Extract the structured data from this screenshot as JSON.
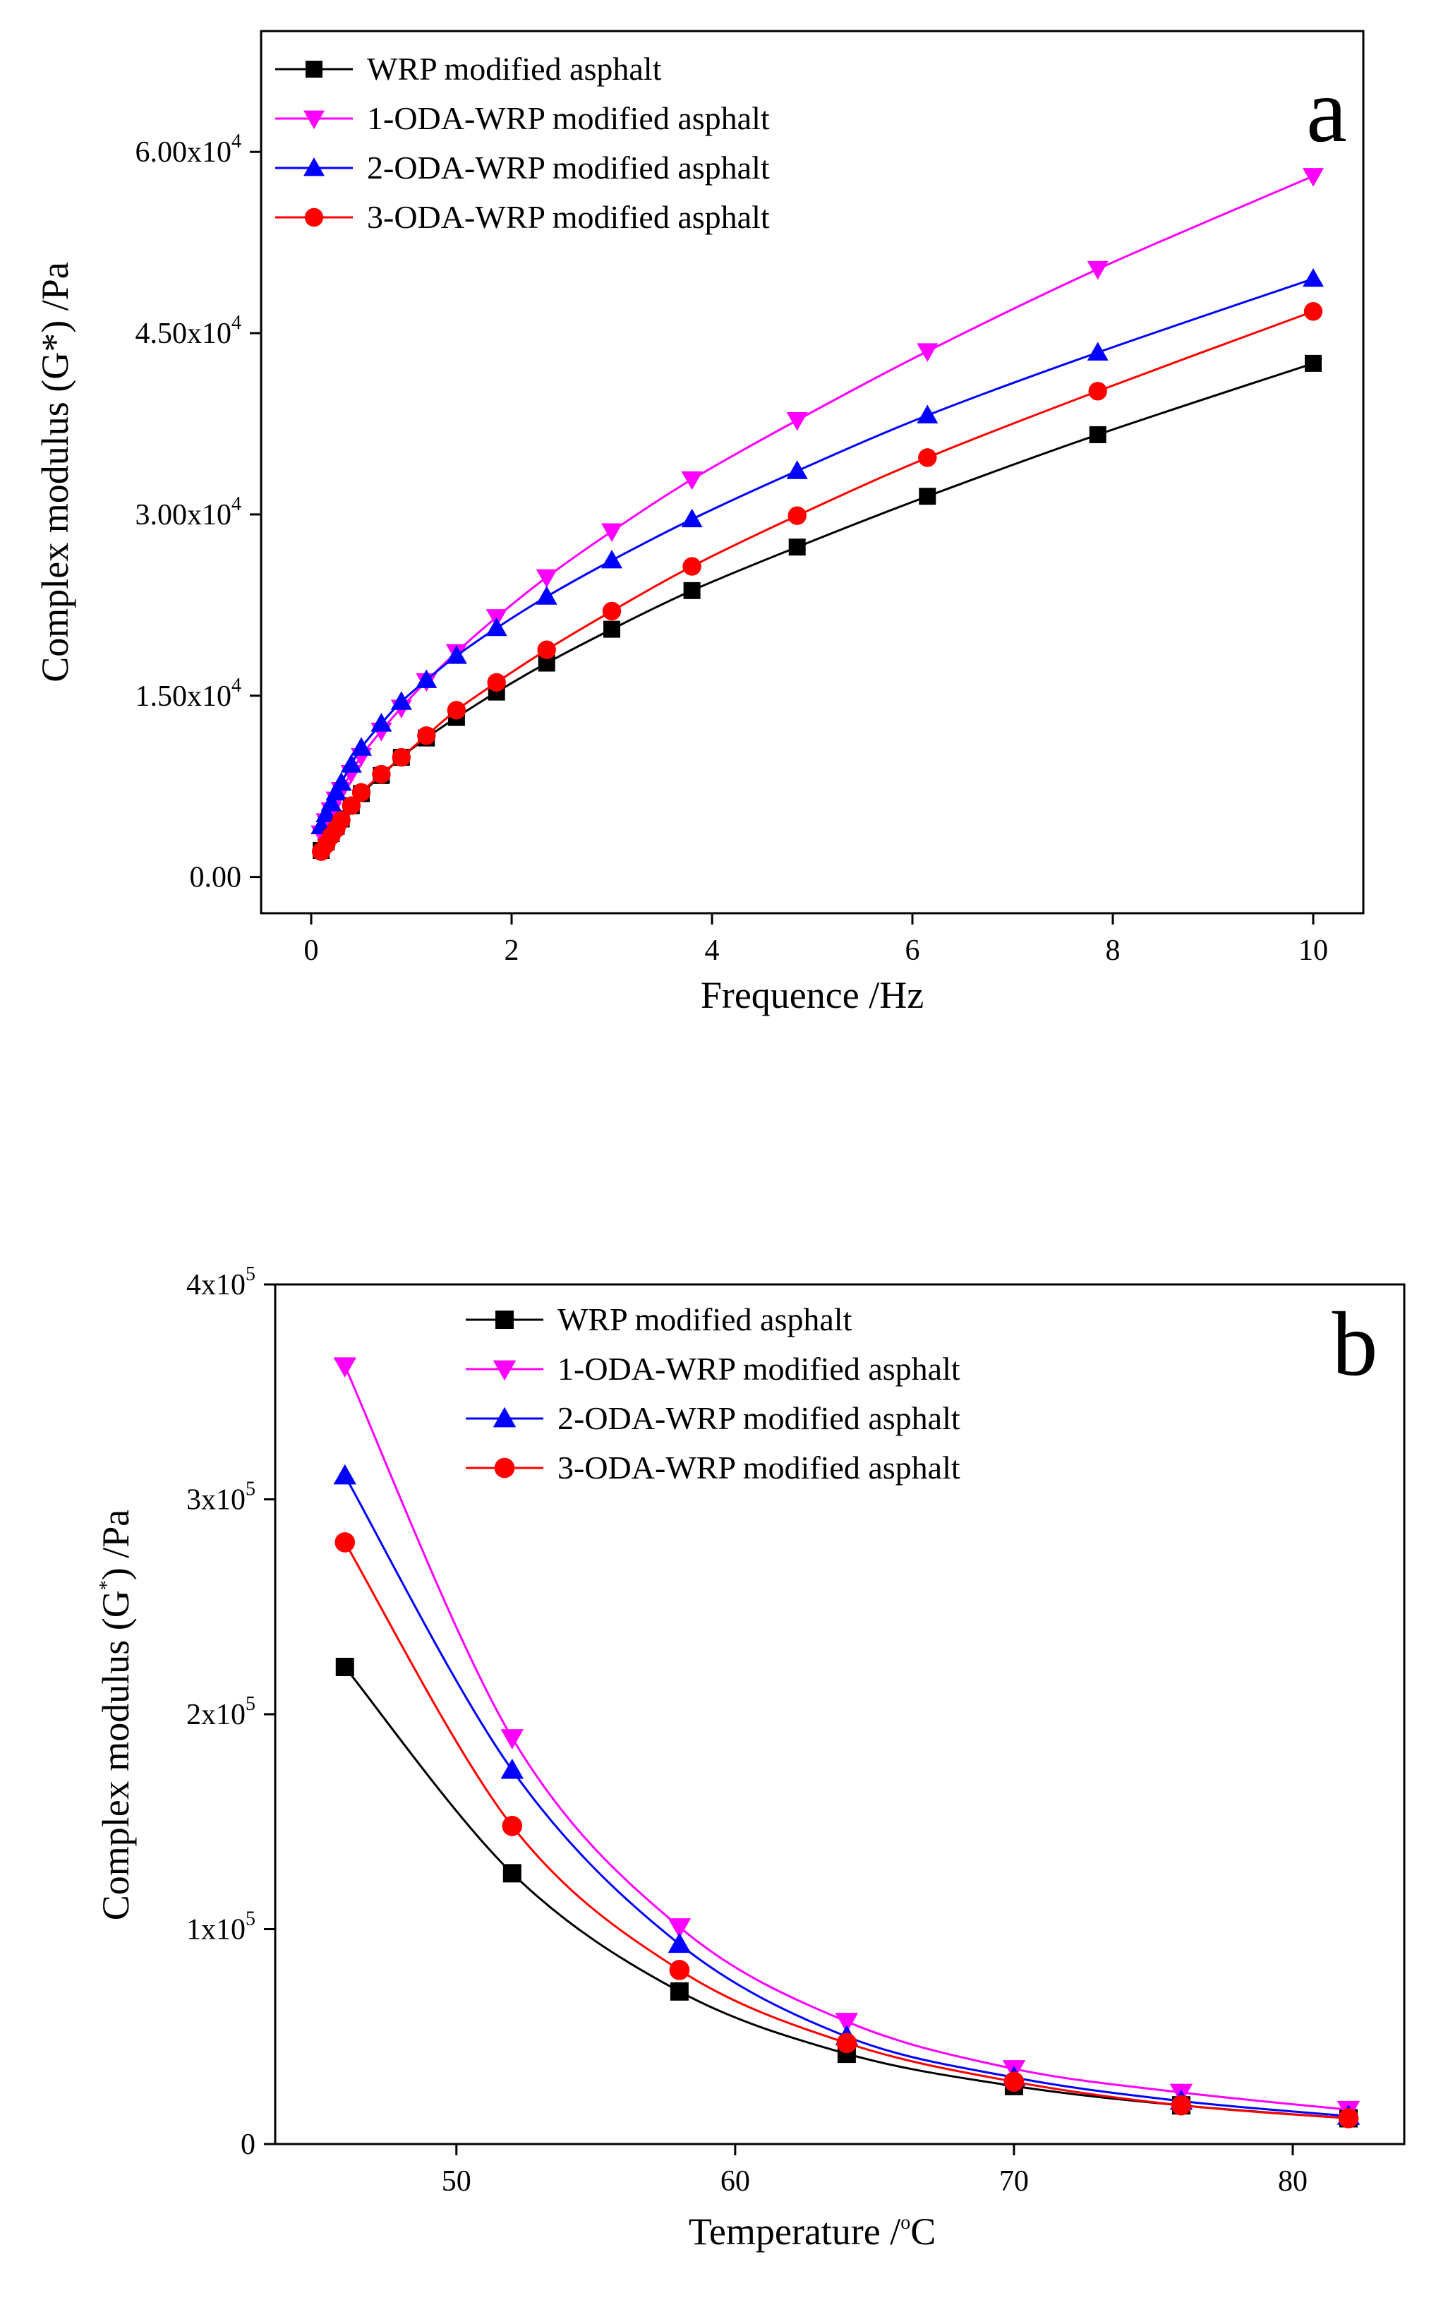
{
  "chart_data": [
    {
      "type": "line",
      "panel_label": "a",
      "xlabel": "Frequence /Hz",
      "ylabel": "Complex modulus (G*) /Pa",
      "xlim": [
        -0.5,
        10.5
      ],
      "ylim": [
        -3000,
        70000
      ],
      "x_ticks": [
        {
          "value": 0,
          "label": "0"
        },
        {
          "value": 2,
          "label": "2"
        },
        {
          "value": 4,
          "label": "4"
        },
        {
          "value": 6,
          "label": "6"
        },
        {
          "value": 8,
          "label": "8"
        },
        {
          "value": 10,
          "label": "10"
        }
      ],
      "y_ticks": [
        {
          "value": 0,
          "label": "0.00",
          "exp": ""
        },
        {
          "value": 15000,
          "label": "1.50x10",
          "exp": "4"
        },
        {
          "value": 30000,
          "label": "3.00x10",
          "exp": "4"
        },
        {
          "value": 45000,
          "label": "4.50x10",
          "exp": "4"
        },
        {
          "value": 60000,
          "label": "6.00x10",
          "exp": "4"
        }
      ],
      "legend_position": "top-left",
      "x": [
        0.1,
        0.126,
        0.158,
        0.2,
        0.251,
        0.316,
        0.398,
        0.501,
        0.631,
        0.794,
        1.0,
        1.26,
        1.58,
        2.0,
        2.51,
        3.16,
        3.98,
        5.01,
        6.31,
        7.94,
        10.0
      ],
      "series": [
        {
          "name": "WRP modified asphalt",
          "color": "#000000",
          "marker": "square",
          "x": [
            0.1,
            0.15,
            0.2,
            0.25,
            0.3,
            0.4,
            0.5,
            0.7,
            0.9,
            1.15,
            1.45,
            1.85,
            2.35,
            3.0,
            3.8,
            4.85,
            6.15,
            7.85,
            10.0
          ],
          "values": [
            2200,
            2900,
            3600,
            4200,
            4800,
            5900,
            6900,
            8400,
            9900,
            11500,
            13200,
            15300,
            17700,
            20500,
            23700,
            27300,
            31500,
            36600,
            42500
          ]
        },
        {
          "name": "1-ODA-WRP modified asphalt",
          "color": "#ff00ff",
          "marker": "triangle-down",
          "x": [
            0.1,
            0.15,
            0.2,
            0.25,
            0.3,
            0.4,
            0.5,
            0.7,
            0.9,
            1.15,
            1.45,
            1.85,
            2.35,
            3.0,
            3.8,
            4.85,
            6.15,
            7.85,
            10.0
          ],
          "values": [
            3600,
            4600,
            5500,
            6400,
            7200,
            8600,
            10000,
            12100,
            14000,
            16200,
            18600,
            21500,
            24800,
            28600,
            32900,
            37800,
            43500,
            50300,
            58000
          ]
        },
        {
          "name": "2-ODA-WRP modified asphalt",
          "color": "#0000ff",
          "marker": "triangle-up",
          "x": [
            0.1,
            0.15,
            0.2,
            0.25,
            0.3,
            0.4,
            0.5,
            0.7,
            0.9,
            1.15,
            1.45,
            1.85,
            2.35,
            3.0,
            3.8,
            4.85,
            6.15,
            7.85,
            10.0
          ],
          "values": [
            4200,
            5200,
            6100,
            7000,
            7800,
            9300,
            10700,
            12700,
            14500,
            16300,
            18300,
            20600,
            23200,
            26200,
            29600,
            33600,
            38200,
            43400,
            49500
          ]
        },
        {
          "name": "3-ODA-WRP modified asphalt",
          "color": "#ff0000",
          "marker": "circle",
          "x": [
            0.1,
            0.15,
            0.2,
            0.25,
            0.3,
            0.4,
            0.5,
            0.7,
            0.9,
            1.15,
            1.45,
            1.85,
            2.35,
            3.0,
            3.8,
            4.85,
            6.15,
            7.85,
            10.0
          ],
          "values": [
            2100,
            2700,
            3400,
            4000,
            4700,
            5900,
            7000,
            8500,
            9900,
            11700,
            13800,
            16100,
            18800,
            22000,
            25700,
            29900,
            34700,
            40200,
            46800
          ]
        }
      ]
    },
    {
      "type": "line",
      "panel_label": "b",
      "xlabel": "Temperature /",
      "xlabel_sup": "o",
      "xlabel_unit": "C",
      "ylabel": "Complex modulus (G",
      "ylabel_sup": "*",
      "ylabel_tail": ") /Pa",
      "xlim": [
        43.5,
        84
      ],
      "ylim": [
        0,
        400000
      ],
      "x_ticks": [
        {
          "value": 50,
          "label": "50"
        },
        {
          "value": 60,
          "label": "60"
        },
        {
          "value": 70,
          "label": "70"
        },
        {
          "value": 80,
          "label": "80"
        }
      ],
      "y_ticks": [
        {
          "value": 0,
          "label": "0",
          "exp": ""
        },
        {
          "value": 100000,
          "label": "1x10",
          "exp": "5"
        },
        {
          "value": 200000,
          "label": "2x10",
          "exp": "5"
        },
        {
          "value": 300000,
          "label": "3x10",
          "exp": "5"
        },
        {
          "value": 400000,
          "label": "4x10",
          "exp": "5"
        }
      ],
      "legend_position": "top-center",
      "series": [
        {
          "name": "WRP modified asphalt",
          "color": "#000000",
          "marker": "square",
          "x": [
            46,
            52,
            58,
            64,
            70,
            76,
            82
          ],
          "values": [
            222000,
            126000,
            71000,
            42000,
            27000,
            18000,
            12000
          ]
        },
        {
          "name": "1-ODA-WRP modified asphalt",
          "color": "#ff00ff",
          "marker": "triangle-down",
          "x": [
            46,
            52,
            58,
            64,
            70,
            76,
            82
          ],
          "values": [
            362000,
            189000,
            101000,
            57000,
            35000,
            24000,
            16000
          ]
        },
        {
          "name": "2-ODA-WRP modified asphalt",
          "color": "#0000ff",
          "marker": "triangle-up",
          "x": [
            46,
            52,
            58,
            64,
            70,
            76,
            82
          ],
          "values": [
            311000,
            174000,
            93000,
            50000,
            31000,
            20000,
            13000
          ]
        },
        {
          "name": "3-ODA-WRP modified asphalt",
          "color": "#ff0000",
          "marker": "circle",
          "x": [
            46,
            52,
            58,
            64,
            70,
            76,
            82
          ],
          "values": [
            280000,
            148000,
            81000,
            47000,
            29000,
            18000,
            12000
          ]
        }
      ]
    }
  ]
}
